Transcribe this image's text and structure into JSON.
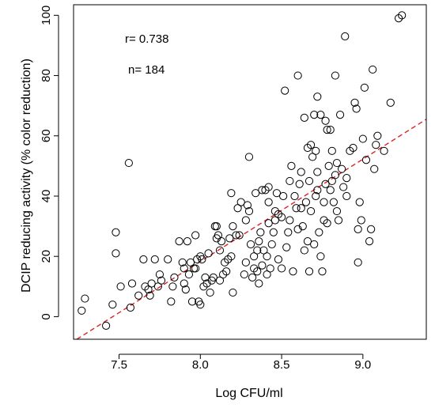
{
  "chart_data": {
    "type": "scatter",
    "xlabel": "Log CFU/ml",
    "ylabel": "DCIP reducing activity (% color reduction)",
    "xlim": [
      7.22,
      9.39
    ],
    "ylim": [
      -7.5,
      103.5
    ],
    "xticks": [
      7.5,
      8.0,
      8.5,
      9.0
    ],
    "xtick_labels": [
      "7.5",
      "8.0",
      "8.5",
      "9.0"
    ],
    "yticks": [
      0,
      20,
      40,
      60,
      80,
      100
    ],
    "ytick_labels": [
      "0",
      "20",
      "40",
      "60",
      "80",
      "100"
    ],
    "annotations": [
      "r= 0.738",
      "n= 184"
    ],
    "regression_line": {
      "color": "#dd2222",
      "style": "dashed",
      "points": [
        [
          7.24,
          -7.5
        ],
        [
          9.39,
          65.5
        ]
      ]
    },
    "marker_color": "#000000",
    "grid": false,
    "legend": "none",
    "points": [
      [
        7.27,
        2
      ],
      [
        7.29,
        6
      ],
      [
        7.42,
        -3
      ],
      [
        7.46,
        4
      ],
      [
        7.48,
        28
      ],
      [
        7.48,
        21
      ],
      [
        7.51,
        10
      ],
      [
        7.56,
        51
      ],
      [
        7.57,
        3
      ],
      [
        7.58,
        11
      ],
      [
        7.62,
        7
      ],
      [
        7.65,
        19
      ],
      [
        7.66,
        10
      ],
      [
        7.68,
        9
      ],
      [
        7.69,
        7
      ],
      [
        7.7,
        11
      ],
      [
        7.72,
        19
      ],
      [
        7.74,
        10
      ],
      [
        7.75,
        14
      ],
      [
        7.76,
        12
      ],
      [
        7.8,
        19
      ],
      [
        7.82,
        5
      ],
      [
        7.83,
        10
      ],
      [
        7.84,
        13
      ],
      [
        7.87,
        25
      ],
      [
        7.89,
        18
      ],
      [
        7.9,
        16
      ],
      [
        7.91,
        9
      ],
      [
        7.92,
        25
      ],
      [
        7.93,
        14
      ],
      [
        7.94,
        18
      ],
      [
        7.95,
        5
      ],
      [
        7.96,
        16
      ],
      [
        7.97,
        16
      ],
      [
        7.97,
        27
      ],
      [
        7.98,
        19
      ],
      [
        7.99,
        5
      ],
      [
        8.0,
        4
      ],
      [
        8.01,
        19
      ],
      [
        8.0,
        20
      ],
      [
        8.02,
        10
      ],
      [
        8.03,
        13
      ],
      [
        8.04,
        11
      ],
      [
        8.06,
        8
      ],
      [
        8.07,
        12
      ],
      [
        8.08,
        13
      ],
      [
        8.09,
        30
      ],
      [
        8.1,
        30
      ],
      [
        8.1,
        26
      ],
      [
        8.11,
        27
      ],
      [
        8.12,
        22
      ],
      [
        8.12,
        12
      ],
      [
        8.14,
        14
      ],
      [
        8.15,
        18
      ],
      [
        8.16,
        15
      ],
      [
        8.17,
        19
      ],
      [
        8.18,
        26
      ],
      [
        8.19,
        20
      ],
      [
        8.2,
        8
      ],
      [
        8.19,
        41
      ],
      [
        8.2,
        30
      ],
      [
        8.22,
        27
      ],
      [
        8.24,
        27
      ],
      [
        8.25,
        38
      ],
      [
        8.27,
        14
      ],
      [
        8.28,
        18
      ],
      [
        8.29,
        37
      ],
      [
        8.3,
        35
      ],
      [
        8.3,
        53
      ],
      [
        8.31,
        24
      ],
      [
        8.32,
        13
      ],
      [
        8.33,
        16
      ],
      [
        8.33,
        20
      ],
      [
        8.34,
        41
      ],
      [
        8.35,
        15
      ],
      [
        8.36,
        25
      ],
      [
        8.36,
        11
      ],
      [
        8.37,
        28
      ],
      [
        8.38,
        17
      ],
      [
        8.38,
        42
      ],
      [
        8.39,
        22
      ],
      [
        8.4,
        42
      ],
      [
        8.41,
        20
      ],
      [
        8.41,
        14
      ],
      [
        8.42,
        31
      ],
      [
        8.42,
        43
      ],
      [
        8.43,
        16
      ],
      [
        8.44,
        24
      ],
      [
        8.45,
        28
      ],
      [
        8.46,
        32
      ],
      [
        8.47,
        41
      ],
      [
        8.48,
        19
      ],
      [
        8.48,
        34
      ],
      [
        8.5,
        16
      ],
      [
        8.5,
        33
      ],
      [
        8.51,
        40
      ],
      [
        8.52,
        75
      ],
      [
        8.53,
        23
      ],
      [
        8.54,
        28
      ],
      [
        8.55,
        32
      ],
      [
        8.56,
        50
      ],
      [
        8.57,
        15
      ],
      [
        8.58,
        40
      ],
      [
        8.59,
        36
      ],
      [
        8.6,
        29
      ],
      [
        8.6,
        80
      ],
      [
        8.61,
        44
      ],
      [
        8.62,
        36
      ],
      [
        8.62,
        48
      ],
      [
        8.63,
        30
      ],
      [
        8.64,
        22
      ],
      [
        8.64,
        66
      ],
      [
        8.65,
        38
      ],
      [
        8.66,
        25
      ],
      [
        8.67,
        15
      ],
      [
        8.67,
        45
      ],
      [
        8.68,
        35
      ],
      [
        8.68,
        57
      ],
      [
        8.69,
        53
      ],
      [
        8.7,
        67
      ],
      [
        8.7,
        24
      ],
      [
        8.71,
        40
      ],
      [
        8.71,
        55
      ],
      [
        8.72,
        73
      ],
      [
        8.72,
        48
      ],
      [
        8.73,
        28
      ],
      [
        8.74,
        20
      ],
      [
        8.74,
        67
      ],
      [
        8.75,
        15
      ],
      [
        8.76,
        38
      ],
      [
        8.76,
        32
      ],
      [
        8.77,
        65
      ],
      [
        8.77,
        44
      ],
      [
        8.78,
        62
      ],
      [
        8.78,
        31
      ],
      [
        8.79,
        50
      ],
      [
        8.8,
        42
      ],
      [
        8.8,
        62
      ],
      [
        8.81,
        55
      ],
      [
        8.81,
        45
      ],
      [
        8.82,
        38
      ],
      [
        8.83,
        80
      ],
      [
        8.83,
        47
      ],
      [
        8.84,
        35
      ],
      [
        8.84,
        51
      ],
      [
        8.85,
        32
      ],
      [
        8.86,
        67
      ],
      [
        8.87,
        49
      ],
      [
        8.88,
        43
      ],
      [
        8.89,
        93
      ],
      [
        8.9,
        40
      ],
      [
        8.92,
        55
      ],
      [
        8.94,
        56
      ],
      [
        8.95,
        71
      ],
      [
        8.96,
        69
      ],
      [
        8.97,
        18
      ],
      [
        8.98,
        38
      ],
      [
        8.99,
        32
      ],
      [
        9.0,
        59
      ],
      [
        9.01,
        76
      ],
      [
        9.02,
        52
      ],
      [
        9.04,
        25
      ],
      [
        9.05,
        29
      ],
      [
        9.06,
        82
      ],
      [
        9.07,
        49
      ],
      [
        9.08,
        57
      ],
      [
        9.09,
        60
      ],
      [
        9.13,
        55
      ],
      [
        9.17,
        71
      ],
      [
        9.22,
        99
      ],
      [
        9.24,
        100
      ],
      [
        8.9,
        46
      ],
      [
        8.46,
        35
      ],
      [
        8.23,
        36
      ],
      [
        8.66,
        56
      ],
      [
        7.9,
        11
      ],
      [
        8.35,
        22
      ],
      [
        8.55,
        45
      ],
      [
        8.13,
        25
      ],
      [
        8.97,
        29
      ],
      [
        8.28,
        32
      ],
      [
        8.72,
        42
      ],
      [
        8.05,
        21
      ],
      [
        8.42,
        38
      ]
    ]
  }
}
